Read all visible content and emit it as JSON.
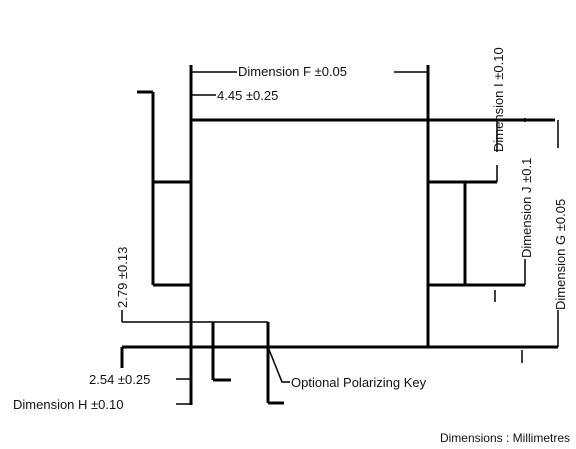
{
  "labels": {
    "dim_f": "Dimension F ±0.05",
    "dim_445": "4.45 ±0.25",
    "dim_i": "Dimension I ±0.10",
    "dim_j": "Dimension J ±0.1",
    "dim_g": "Dimension G ±0.05",
    "dim_279": "2.79 ±0.13",
    "dim_254": "2.54 ±0.25",
    "dim_h": "Dimension H ±0.10",
    "polarizing_key": "Optional Polarizing Key",
    "units_note": "Dimensions : Millimetres"
  }
}
